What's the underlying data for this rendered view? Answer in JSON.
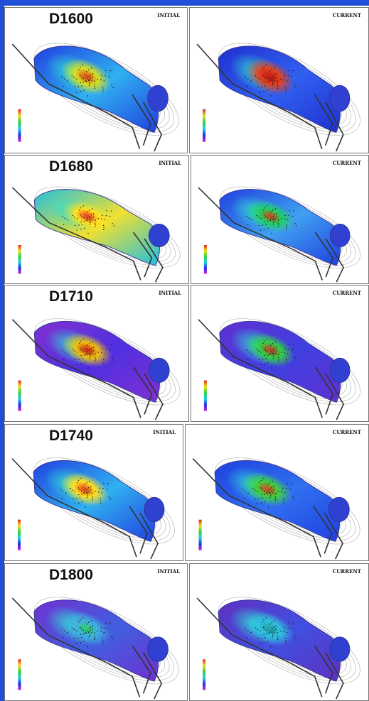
{
  "rows": [
    {
      "label": "D1600",
      "left": "INITIAL",
      "right": "CURRENT"
    },
    {
      "label": "D1680",
      "left": "INITIAL",
      "right": "CURRENT"
    },
    {
      "label": "D1710",
      "left": "INITIAL",
      "right": "CURRENT"
    },
    {
      "label": "D1740",
      "left": "INITIAL",
      "right": "CURRENT"
    },
    {
      "label": "D1800",
      "left": "INITIAL",
      "right": "CURRENT"
    }
  ]
}
